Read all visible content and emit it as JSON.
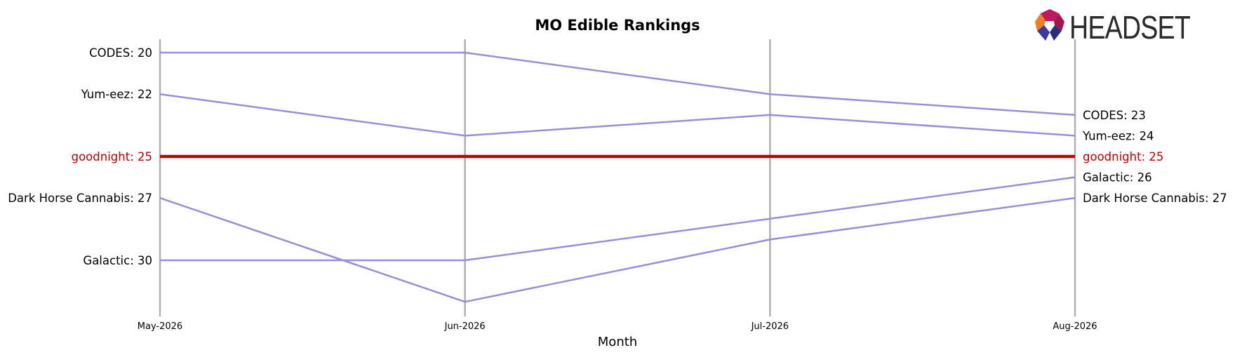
{
  "brand": {
    "name": "HEADSET"
  },
  "colors": {
    "series": "#9b8ed8",
    "highlight": "#c00000",
    "guide": "#b0b0b0",
    "text": "#000000"
  },
  "chart_data": {
    "type": "line",
    "title": "MO Edible Rankings",
    "xlabel": "Month",
    "ylabel": "",
    "x": [
      "May-2026",
      "Jun-2026",
      "Jul-2026",
      "Aug-2026"
    ],
    "ylim": [
      19.3,
      32.6
    ],
    "y_inverted": true,
    "grid": false,
    "highlight_series": "goodnight",
    "series": [
      {
        "name": "CODES",
        "values": [
          20,
          20,
          22,
          23
        ]
      },
      {
        "name": "Yum-eez",
        "values": [
          22,
          24,
          23,
          24
        ]
      },
      {
        "name": "goodnight",
        "values": [
          25,
          25,
          25,
          25
        ]
      },
      {
        "name": "Dark Horse Cannabis",
        "values": [
          27,
          32,
          29,
          27
        ]
      },
      {
        "name": "Galactic",
        "values": [
          30,
          30,
          28,
          26
        ]
      }
    ]
  }
}
